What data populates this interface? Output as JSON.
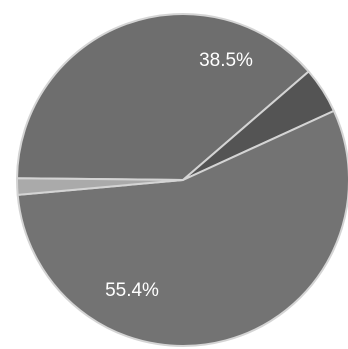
{
  "chart_data": {
    "type": "pie",
    "slices": [
      {
        "label": "38.5%",
        "value": 38.5,
        "color": "#6e6e6e"
      },
      {
        "label": "",
        "value": 4.5,
        "color": "#545454"
      },
      {
        "label": "55.4%",
        "value": 55.4,
        "color": "#737373"
      },
      {
        "label": "",
        "value": 1.6,
        "color": "#aaaaaa"
      }
    ],
    "start_angle_deg": -89.4,
    "separator_color": "#d4d4d4"
  }
}
